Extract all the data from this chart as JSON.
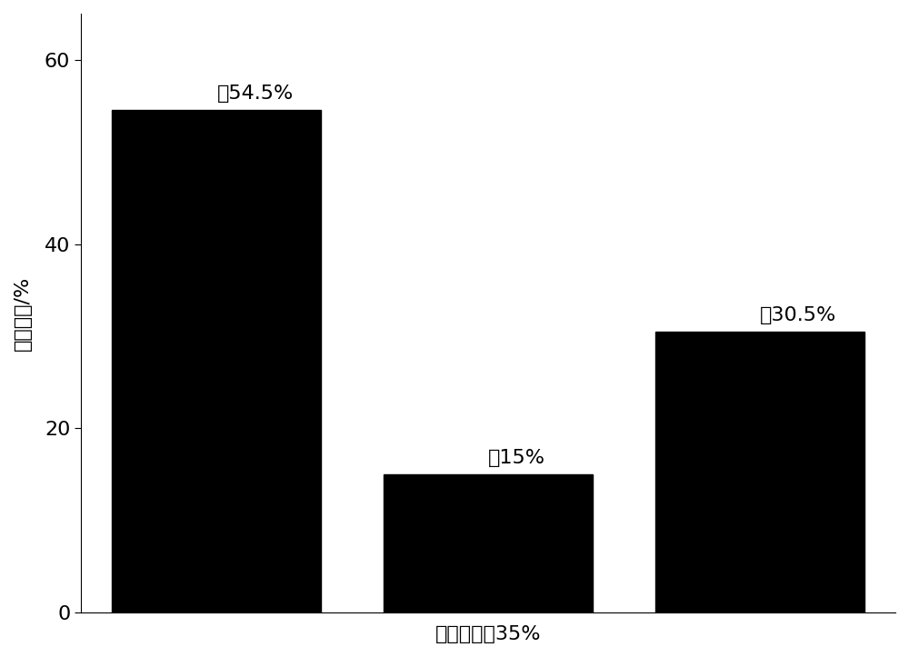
{
  "categories": [
    "油",
    "气",
    "固"
  ],
  "values": [
    54.5,
    15.0,
    30.5
  ],
  "labels": [
    "油54.5%",
    "气15%",
    "固30.5%"
  ],
  "bar_color": "#000000",
  "ylabel": "产物分布/%",
  "xlabel": "催化剂含量35%",
  "ylim": [
    0,
    65
  ],
  "yticks": [
    0,
    20,
    40,
    60
  ],
  "bar_width": 0.35,
  "label_fontsize": 16,
  "axis_fontsize": 16,
  "background_color": "#ffffff"
}
